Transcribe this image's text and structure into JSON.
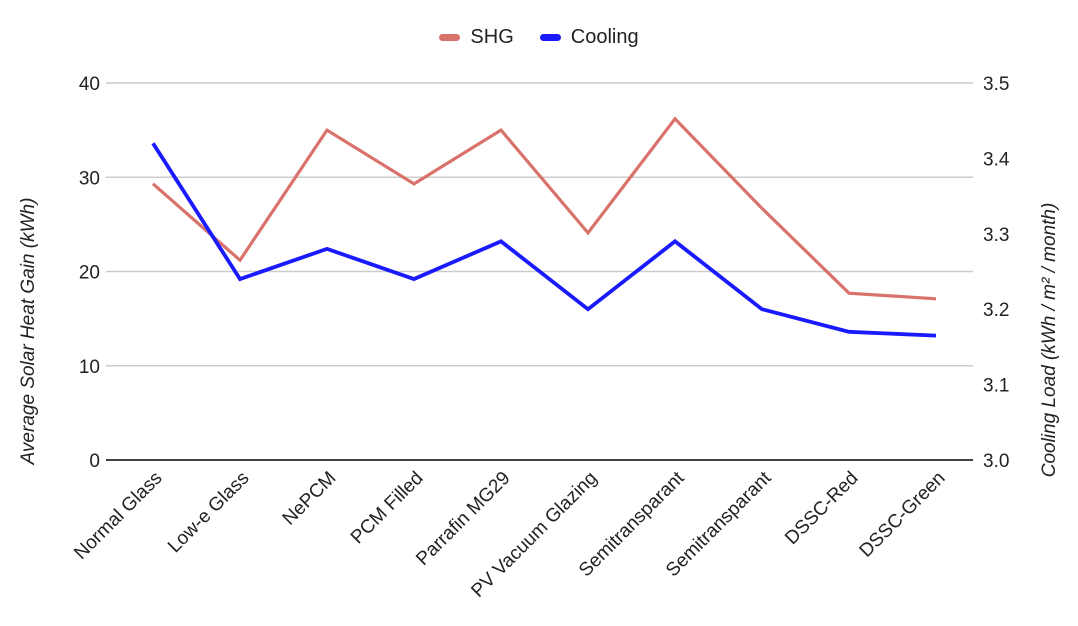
{
  "chart_data": {
    "type": "line",
    "title": "",
    "categories": [
      "Normal Glass",
      "Low-e Glass",
      "NePCM",
      "PCM Filled",
      "Parrafin MG29",
      "PV Vacuum Glazing",
      "Semitransparant",
      "Semitransparant",
      "DSSC-Red",
      "DSSC-Green"
    ],
    "series": [
      {
        "name": "SHG",
        "axis": "left",
        "color": "#d9726a",
        "values": [
          29.3,
          21.2,
          35.0,
          29.3,
          35.0,
          24.1,
          36.2,
          26.7,
          17.7,
          17.1
        ]
      },
      {
        "name": "Cooling",
        "axis": "right",
        "color": "#1a1aff",
        "values": [
          3.42,
          3.24,
          3.28,
          3.24,
          3.29,
          3.2,
          3.29,
          3.2,
          3.17,
          3.165
        ]
      }
    ],
    "left_axis": {
      "title": "Average Solar Heat Gain (kWh)",
      "min": 0,
      "max": 40,
      "ticks": [
        0,
        10,
        20,
        30,
        40
      ]
    },
    "right_axis": {
      "title": "Cooling Load  (kWh / m² / month)",
      "min": 3.0,
      "max": 3.5,
      "ticks": [
        3.0,
        3.1,
        3.2,
        3.3,
        3.4,
        3.5
      ]
    },
    "x_axis": {
      "label_rotation_deg": 45
    },
    "legend_position": "top",
    "grid": true,
    "colors": {
      "grid_line": "#cccccc",
      "baseline": "#424242",
      "text": "#222222",
      "background": "#ffffff"
    }
  }
}
